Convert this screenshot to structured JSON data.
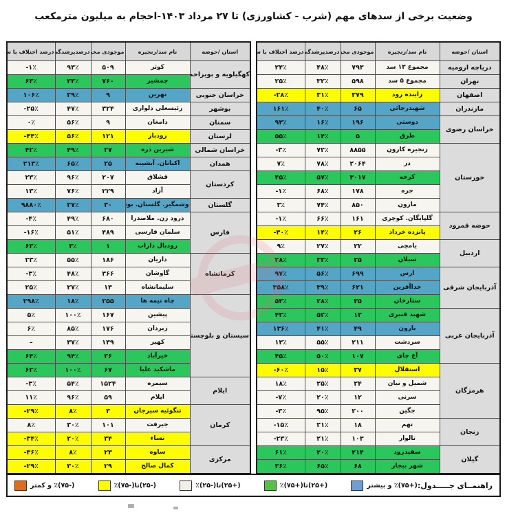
{
  "title": "وضعیت برخی از سدهای مهم (شرب - کشاورزی) تا ۲۷ مرداد ۱۴۰۳-احجام به میلیون مترمکعب",
  "columns": [
    "استان /حوضه",
    "نام سد/زنجیره",
    "موجودی مخزن",
    "درصدپرشدگی",
    "درصد اختلاف با سال قبل"
  ],
  "colors": {
    "blue": "#54a5c6",
    "green": "#2cc75c",
    "yellow": "#fdfd00",
    "white": "#f7f5ef",
    "header_gray": "#d8d8d8",
    "province_gray": "#dcdcdc",
    "legend_orange": "#d96e20",
    "legend_blue": "#6f9fd0",
    "legend_green": "#5abf4a",
    "legend_white": "#f2efe9"
  },
  "legend": {
    "label": "راهنمــای جـــــدول:",
    "items": [
      {
        "band": "blue",
        "label": "(+۷۵)٪ و بیشتر"
      },
      {
        "band": "green",
        "label": "(+۲۵)تا(+۷۵)٪"
      },
      {
        "band": "white",
        "label": "(+۲۵)تا(-۲۵)٪"
      },
      {
        "band": "yellow",
        "label": "(-۲۵)تا(-۷۵)٪"
      },
      {
        "band": "orange",
        "label": "(-۷۵)٪ و کمتر"
      }
    ]
  },
  "right_table": {
    "groups": [
      {
        "province": "دریاچه ارومیه",
        "rows": [
          {
            "name": "مجموع ۱۳ سد",
            "vol": "۷۹۳",
            "fill": "۴۸٪",
            "diff": "۲۴٪",
            "band": "white"
          }
        ]
      },
      {
        "province": "تهران",
        "rows": [
          {
            "name": "مجموع ۵ سد",
            "vol": "۵۹۸",
            "fill": "۳۲٪",
            "diff": "۲۵٪",
            "band": "white"
          }
        ]
      },
      {
        "province": "اصفهان",
        "rows": [
          {
            "name": "زاینده رود",
            "vol": "۳۷۹",
            "fill": "۳۱٪",
            "diff": "-۲۸٪",
            "band": "yellow"
          }
        ]
      },
      {
        "province": "مازندران",
        "rows": [
          {
            "name": "شهیدرجائی",
            "vol": "۶۵",
            "fill": "۴۰٪",
            "diff": "۱۶۱٪",
            "band": "blue"
          }
        ]
      },
      {
        "province": "خراسان رضوی",
        "rows": [
          {
            "name": "دوستی",
            "vol": "۱۹۶",
            "fill": "۱۶٪",
            "diff": "۹۳٪",
            "band": "blue"
          },
          {
            "name": "طرق",
            "vol": "۵",
            "fill": "۱۴٪",
            "diff": "۵۵٪",
            "band": "green"
          }
        ]
      },
      {
        "province": "خوزستان",
        "rows": [
          {
            "name": "زنجیره کارون",
            "vol": "۸۸۵۵",
            "fill": "۷۲٪",
            "diff": "-۳٪",
            "band": "white"
          },
          {
            "name": "دز",
            "vol": "۲۰۶۴",
            "fill": "۷۸٪",
            "diff": "۷٪",
            "band": "white"
          },
          {
            "name": "کرخه",
            "vol": "۳۰۱۷",
            "fill": "۵۷٪",
            "diff": "۴۵٪",
            "band": "green"
          },
          {
            "name": "جره",
            "vol": "۱۷۸",
            "fill": "۶۸٪",
            "diff": "-۱٪",
            "band": "white"
          },
          {
            "name": "مارون",
            "vol": "۸۵۰",
            "fill": "۷۴٪",
            "diff": "۳٪",
            "band": "white"
          }
        ]
      },
      {
        "province": "حوضه قمرود",
        "rows": [
          {
            "name": "گلپایگان. کوچری",
            "vol": "۱۶۱",
            "fill": "۶۶٪",
            "diff": "-۱٪",
            "band": "white"
          },
          {
            "name": "پانزده خرداد",
            "vol": "۲۶",
            "fill": "۱۴٪",
            "diff": "-۳۰٪",
            "band": "yellow"
          }
        ]
      },
      {
        "province": "اردبیل",
        "rows": [
          {
            "name": "یامچی",
            "vol": "۲۲",
            "fill": "۲۷٪",
            "diff": "۹٪",
            "band": "white"
          },
          {
            "name": "سبلان",
            "vol": "۲۵",
            "fill": "۳۳٪",
            "diff": "۲۸٪",
            "band": "green"
          }
        ]
      },
      {
        "province": "آذربایجان شرقی",
        "rows": [
          {
            "name": "ارس",
            "vol": "۶۹۹",
            "fill": "۵۶٪",
            "diff": "۹۷٪",
            "band": "blue"
          },
          {
            "name": "خداآفرین",
            "vol": "۶۲۱",
            "fill": "۳۹٪",
            "diff": "۳۵۸٪",
            "band": "blue"
          },
          {
            "name": "ستارخان",
            "vol": "۳۵",
            "fill": "۲۸٪",
            "diff": "۵۳٪",
            "band": "green"
          }
        ]
      },
      {
        "province": "آذربایجان غربی",
        "rows": [
          {
            "name": "شهید قنبری",
            "vol": "۱۳",
            "fill": "۵۲٪",
            "diff": "۴۳٪",
            "band": "green"
          },
          {
            "name": "بارون",
            "vol": "۴۹",
            "fill": "۴۱٪",
            "diff": "۱۳۶٪",
            "band": "blue"
          },
          {
            "name": "سردشت",
            "vol": "۲۱۱",
            "fill": "۵۵٪",
            "diff": "۱۳٪",
            "band": "white"
          },
          {
            "name": "آغ چای",
            "vol": "۱۰۷",
            "fill": "۵۰٪",
            "diff": "۴۵٪",
            "band": "green"
          }
        ]
      },
      {
        "province": "هرمزگان",
        "rows": [
          {
            "name": "استقلال",
            "vol": "۳۷",
            "fill": "۱۵٪",
            "diff": "-۶۰٪",
            "band": "yellow"
          },
          {
            "name": "شمیل و نیان",
            "vol": "۲۴",
            "fill": "۲۵٪",
            "diff": "۱۸٪",
            "band": "white"
          },
          {
            "name": "سرنی",
            "vol": "۱۲",
            "fill": "۲۰٪",
            "diff": "-۷٪",
            "band": "white"
          },
          {
            "name": "جگین",
            "vol": "۲۰۰",
            "fill": "۹۵٪",
            "diff": "-۳٪",
            "band": "white"
          }
        ]
      },
      {
        "province": "زنجان",
        "rows": [
          {
            "name": "تهم",
            "vol": "۱۸",
            "fill": "۲۱٪",
            "diff": "-۱۵٪",
            "band": "white"
          },
          {
            "name": "تالوار",
            "vol": "۱۰۳",
            "fill": "۲۱٪",
            "diff": "-۲۳٪",
            "band": "white"
          }
        ]
      },
      {
        "province": "گیلان",
        "rows": [
          {
            "name": "سفیدرود",
            "vol": "۲۱۴",
            "fill": "۲۰٪",
            "diff": "۶۱٪",
            "band": "green"
          },
          {
            "name": "شهر بیجار",
            "vol": "۶۸",
            "fill": "۶۵٪",
            "diff": "۳۶٪",
            "band": "green"
          }
        ]
      }
    ]
  },
  "left_table": {
    "groups": [
      {
        "province": "کهگیلویه و بویراحمد",
        "rows": [
          {
            "name": "کوثر",
            "vol": "۵۰۹",
            "fill": "۹۳٪",
            "diff": "-۱٪",
            "band": "white"
          },
          {
            "name": "چمشیر",
            "vol": "۷۶۰",
            "fill": "۳۳٪",
            "diff": "۶۳٪",
            "band": "green"
          }
        ]
      },
      {
        "province": "خراسان جنوبی",
        "rows": [
          {
            "name": "نهرین",
            "vol": "۹",
            "fill": "۲۹٪",
            "diff": "۱۰۶٪",
            "band": "blue"
          }
        ]
      },
      {
        "province": "بوشهر",
        "rows": [
          {
            "name": "رئیسعلی دلواری",
            "vol": "۳۲۴",
            "fill": "۴۷٪",
            "diff": "-۲۵٪",
            "band": "white"
          }
        ]
      },
      {
        "province": "سمنان",
        "rows": [
          {
            "name": "دامغان",
            "vol": "۹",
            "fill": "۵۶٪",
            "diff": "۰٪",
            "band": "white"
          }
        ]
      },
      {
        "province": "لرستان",
        "rows": [
          {
            "name": "رودبار",
            "vol": "۱۲۱",
            "fill": "۵۶٪",
            "diff": "-۴۴٪",
            "band": "yellow"
          }
        ]
      },
      {
        "province": "خراسان شمالی",
        "rows": [
          {
            "name": "شیرین دره",
            "vol": "۲۷",
            "fill": "۴۹٪",
            "diff": "۴۲٪",
            "band": "green"
          }
        ]
      },
      {
        "province": "همدان",
        "rows": [
          {
            "name": "اکباتان. آبشینه",
            "vol": "۲۵",
            "fill": "۶۵٪",
            "diff": "۲۱۳٪",
            "band": "blue"
          }
        ]
      },
      {
        "province": "کردستان",
        "rows": [
          {
            "name": "قشلاق",
            "vol": "۲۰۷",
            "fill": "۹۶٪",
            "diff": "۲۳٪",
            "band": "white"
          },
          {
            "name": "آزاد",
            "vol": "۲۲۹",
            "fill": "۷۶٪",
            "diff": "۱۳٪",
            "band": "white"
          }
        ]
      },
      {
        "province": "گلستان",
        "rows": [
          {
            "name": "وشمگیر. گلستان. بوستان",
            "vol": "۳۰",
            "fill": "۲۷٪",
            "diff": "۹۸۸۰٪",
            "band": "blue"
          }
        ]
      },
      {
        "province": "فارس",
        "rows": [
          {
            "name": "درود زن. ملاصدرا",
            "vol": "۶۸۰",
            "fill": "۴۹٪",
            "diff": "-۴٪",
            "band": "white"
          },
          {
            "name": "سلمان فارسی",
            "vol": "۴۸۹",
            "fill": "۵۱٪",
            "diff": "-۱۶٪",
            "band": "white"
          },
          {
            "name": "رودبال داراب",
            "vol": "۱",
            "fill": "۳٪",
            "diff": "۶۳٪",
            "band": "green"
          }
        ]
      },
      {
        "province": "کرمانشاه",
        "rows": [
          {
            "name": "داریان",
            "vol": "۱۸۶",
            "fill": "۵۵٪",
            "diff": "۲۳٪",
            "band": "white"
          },
          {
            "name": "گاوشان",
            "vol": "۳۶۶",
            "fill": "۴۸٪",
            "diff": "-۳٪",
            "band": "white"
          },
          {
            "name": "سلیمانشاه",
            "vol": "۱۳",
            "fill": "۲۷٪",
            "diff": "۲۵٪",
            "band": "white"
          }
        ]
      },
      {
        "province": "سیستان و بلوچستان",
        "rows": [
          {
            "name": "چاه نیمه ها",
            "vol": "۲۵۵",
            "fill": "۱۸٪",
            "diff": "۲۹۸٪",
            "band": "blue"
          },
          {
            "name": "پیشین",
            "vol": "۱۶۷",
            "fill": "۱۰۰٪",
            "diff": "۵٪",
            "band": "white"
          },
          {
            "name": "زیردان",
            "vol": "۱۷۶",
            "fill": "۸۵٪",
            "diff": "۶٪",
            "band": "white"
          },
          {
            "name": "کهیر",
            "vol": "۱۳۹",
            "fill": "۳۷٪",
            "diff": "–",
            "band": "white"
          },
          {
            "name": "خیرآباد",
            "vol": "۳۶",
            "fill": "۹۴٪",
            "diff": "۶۴٪",
            "band": "green"
          },
          {
            "name": "ماشکید علیا",
            "vol": "۶۷",
            "fill": "۱۰۰٪",
            "diff": "۶۲٪",
            "band": "green"
          }
        ]
      },
      {
        "province": "ایلام",
        "rows": [
          {
            "name": "سیمره",
            "vol": "۱۵۲۴",
            "fill": "۵۴٪",
            "diff": "-۳٪",
            "band": "white"
          },
          {
            "name": "ایلام",
            "vol": "۵۹",
            "fill": "۹۶٪",
            "diff": "۱۱٪",
            "band": "white"
          }
        ]
      },
      {
        "province": "کرمان",
        "rows": [
          {
            "name": "تنگوئیه سیرجان",
            "vol": "۳",
            "fill": "۸٪",
            "diff": "-۲۹٪",
            "band": "yellow"
          },
          {
            "name": "جیرفت",
            "vol": "۱۰۱",
            "fill": "۳۰٪",
            "diff": "۸٪",
            "band": "white"
          },
          {
            "name": "نساء",
            "vol": "۳۴",
            "fill": "۲۰٪",
            "diff": "-۳۴٪",
            "band": "yellow"
          }
        ]
      },
      {
        "province": "مرکزی",
        "rows": [
          {
            "name": "ساوه",
            "vol": "۲۳",
            "fill": "۸٪",
            "diff": "-۳۶٪",
            "band": "yellow"
          },
          {
            "name": "کمال صالح",
            "vol": "۲۹",
            "fill": "۳۰٪",
            "diff": "-۲۹٪",
            "band": "yellow"
          }
        ]
      }
    ]
  }
}
